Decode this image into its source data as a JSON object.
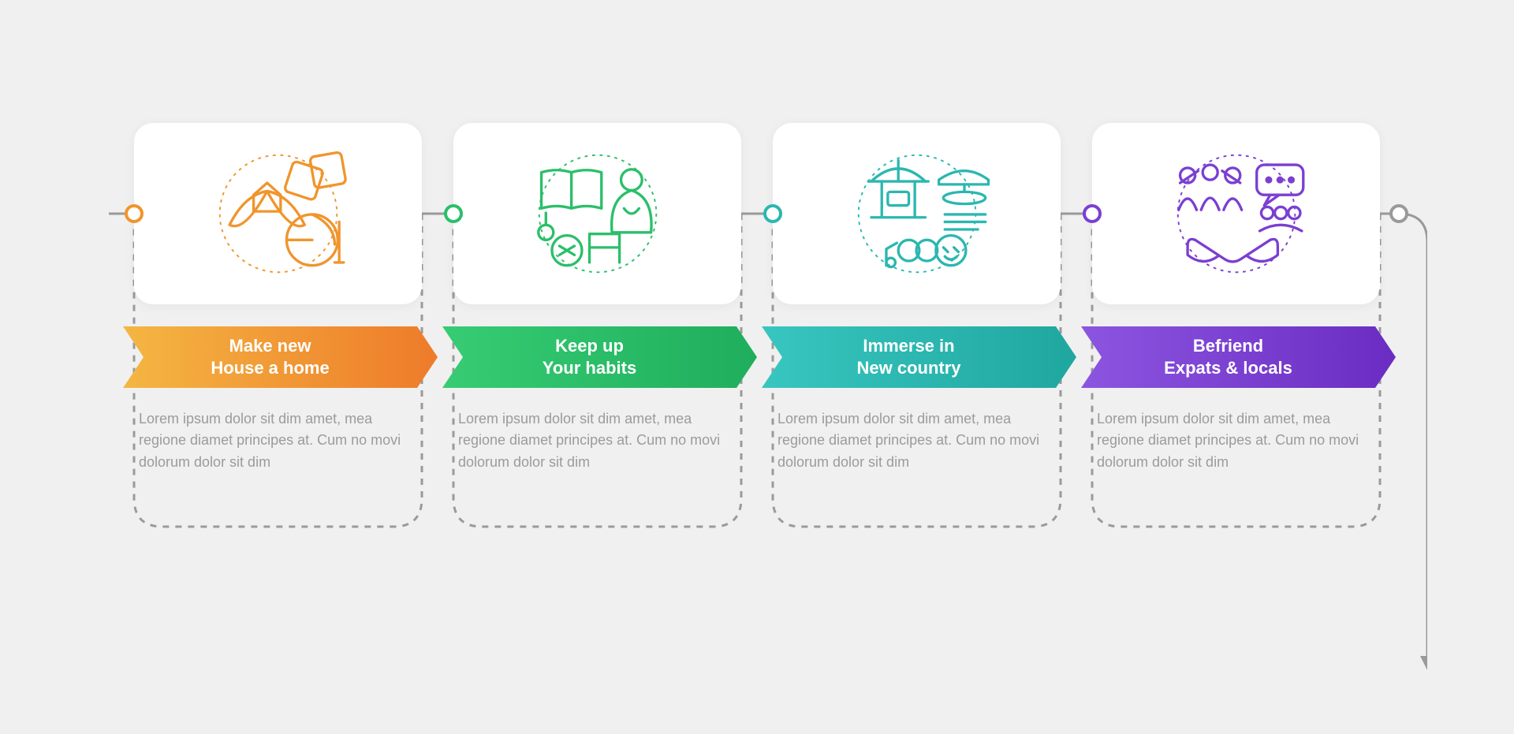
{
  "type": "infographic-process",
  "background_color": "#f0f0f0",
  "card_background": "#ffffff",
  "connector": {
    "color": "#9a9a9a",
    "width": 3,
    "dash": "8 8",
    "corner_radius": 36
  },
  "arrow_shape": {
    "height": 78,
    "notch_depth": 26
  },
  "dot": {
    "diameter": 24,
    "ring_width": 4,
    "fill": "#ffffff",
    "end_color": "#9a9a9a"
  },
  "typography": {
    "title_fontsize": 22,
    "title_weight": 600,
    "title_color": "#ffffff",
    "desc_fontsize": 18,
    "desc_color": "#9b9b9b"
  },
  "steps": [
    {
      "title_line1": "Make new",
      "title_line2": "House a home",
      "desc": "Lorem ipsum dolor sit dim amet, mea regione diamet principes at. Cum no movi dolorum dolor sit dim",
      "icon_color": "#f0952c",
      "arrow_gradient": [
        "#f4b642",
        "#ee7b2a"
      ],
      "dot_color": "#f0952c",
      "icon": "home"
    },
    {
      "title_line1": "Keep up",
      "title_line2": "Your habits",
      "desc": "Lorem ipsum dolor sit dim amet, mea regione diamet principes at. Cum no movi dolorum dolor sit dim",
      "icon_color": "#2bbf6a",
      "arrow_gradient": [
        "#37cc74",
        "#1fae5c"
      ],
      "dot_color": "#2bbf6a",
      "icon": "habits"
    },
    {
      "title_line1": "Immerse in",
      "title_line2": "New country",
      "desc": "Lorem ipsum dolor sit dim amet, mea regione diamet principes at. Cum no movi dolorum dolor sit dim",
      "icon_color": "#2bb7b0",
      "arrow_gradient": [
        "#38c6c0",
        "#1fa79f"
      ],
      "dot_color": "#2bb7b0",
      "icon": "culture"
    },
    {
      "title_line1": "Befriend",
      "title_line2": "Expats & locals",
      "desc": "Lorem ipsum dolor sit dim amet, mea regione diamet principes at. Cum no movi dolorum dolor sit dim",
      "icon_color": "#7b3fd1",
      "arrow_gradient": [
        "#8c55e0",
        "#6a2cc2"
      ],
      "dot_color": "#7b3fd1",
      "icon": "friends"
    }
  ]
}
